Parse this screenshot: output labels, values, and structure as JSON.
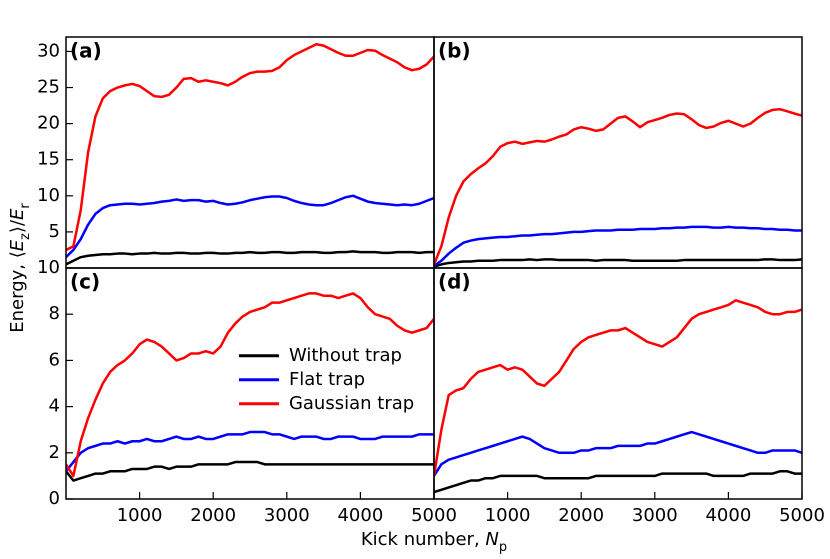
{
  "xlabel": [
    "Kick number, ",
    "N",
    "p"
  ],
  "ylabel": [
    "Energy, ⟨",
    "E",
    "z",
    "⟩/",
    "E",
    "r"
  ],
  "chart_data": [
    {
      "type": "line",
      "label": "(a)",
      "x": [
        0,
        100,
        200,
        300,
        400,
        500,
        600,
        700,
        800,
        900,
        1000,
        1100,
        1200,
        1300,
        1400,
        1500,
        1600,
        1700,
        1800,
        1900,
        2000,
        2100,
        2200,
        2300,
        2400,
        2500,
        2600,
        2700,
        2800,
        2900,
        3000,
        3100,
        3200,
        3300,
        3400,
        3500,
        3600,
        3700,
        3800,
        3900,
        4000,
        4100,
        4200,
        4300,
        4400,
        4500,
        4600,
        4700,
        4800,
        4900,
        5000
      ],
      "xlim": [
        0,
        5000
      ],
      "ylim": [
        0,
        32
      ],
      "yticks": [
        5,
        10,
        15,
        20,
        25,
        30
      ],
      "series": [
        {
          "name": "Without trap",
          "color": "#000000",
          "values": [
            0.5,
            1,
            1.5,
            1.7,
            1.8,
            1.9,
            1.9,
            2,
            2,
            1.9,
            2,
            2,
            2.1,
            2,
            2,
            2.1,
            2.1,
            2,
            2,
            2.1,
            2.1,
            2,
            2,
            2.1,
            2.1,
            2.2,
            2.1,
            2.1,
            2.2,
            2.2,
            2.1,
            2.1,
            2.2,
            2.2,
            2.2,
            2.1,
            2.1,
            2.2,
            2.2,
            2.3,
            2.2,
            2.2,
            2.2,
            2.1,
            2.1,
            2.2,
            2.2,
            2.2,
            2.1,
            2.2,
            2.2
          ]
        },
        {
          "name": "Flat trap",
          "color": "#0000ff",
          "values": [
            1.5,
            2.5,
            4,
            6,
            7.5,
            8.3,
            8.7,
            8.8,
            8.9,
            8.9,
            8.8,
            8.9,
            9,
            9.2,
            9.3,
            9.5,
            9.3,
            9.4,
            9.4,
            9.2,
            9.3,
            9,
            8.8,
            8.9,
            9.1,
            9.4,
            9.6,
            9.8,
            9.9,
            9.9,
            9.7,
            9.3,
            9,
            8.8,
            8.7,
            8.7,
            9,
            9.4,
            9.8,
            10,
            9.6,
            9.2,
            9,
            8.9,
            8.8,
            8.7,
            8.8,
            8.7,
            8.9,
            9.3,
            9.7
          ]
        },
        {
          "name": "Gaussian trap",
          "color": "#ff0000",
          "values": [
            2.5,
            3,
            8,
            16,
            21,
            23.5,
            24.5,
            25,
            25.3,
            25.5,
            25.2,
            24.5,
            23.8,
            23.7,
            24,
            25,
            26.2,
            26.3,
            25.8,
            26,
            25.8,
            25.6,
            25.3,
            25.8,
            26.5,
            27,
            27.2,
            27.2,
            27.3,
            27.8,
            28.8,
            29.5,
            30,
            30.5,
            31,
            30.8,
            30.3,
            29.8,
            29.4,
            29.4,
            29.8,
            30.2,
            30.1,
            29.5,
            29,
            28.5,
            27.8,
            27.4,
            27.6,
            28.2,
            29.3
          ]
        }
      ]
    },
    {
      "type": "line",
      "label": "(b)",
      "x": [
        0,
        100,
        200,
        300,
        400,
        500,
        600,
        700,
        800,
        900,
        1000,
        1100,
        1200,
        1300,
        1400,
        1500,
        1600,
        1700,
        1800,
        1900,
        2000,
        2100,
        2200,
        2300,
        2400,
        2500,
        2600,
        2700,
        2800,
        2900,
        3000,
        3100,
        3200,
        3300,
        3400,
        3500,
        3600,
        3700,
        3800,
        3900,
        4000,
        4100,
        4200,
        4300,
        4400,
        4500,
        4600,
        4700,
        4800,
        4900,
        5000
      ],
      "xlim": [
        0,
        5000
      ],
      "ylim": [
        0,
        32
      ],
      "series": [
        {
          "name": "Without trap",
          "color": "#000000",
          "values": [
            0.2,
            0.5,
            0.7,
            0.8,
            0.9,
            0.9,
            1,
            1,
            1,
            1.1,
            1.1,
            1.1,
            1.1,
            1.2,
            1.1,
            1.2,
            1.2,
            1.1,
            1.1,
            1.1,
            1.1,
            1.1,
            1,
            1.1,
            1.1,
            1.1,
            1.1,
            1,
            1,
            1,
            1,
            1,
            1,
            1,
            1.1,
            1.1,
            1.1,
            1.1,
            1.1,
            1.1,
            1.1,
            1.1,
            1.1,
            1.1,
            1.1,
            1.2,
            1.2,
            1.1,
            1.1,
            1.1,
            1.2
          ]
        },
        {
          "name": "Flat trap",
          "color": "#0000ff",
          "values": [
            0.3,
            1,
            2,
            2.8,
            3.5,
            3.8,
            4,
            4.1,
            4.2,
            4.3,
            4.3,
            4.4,
            4.5,
            4.5,
            4.6,
            4.7,
            4.7,
            4.8,
            4.9,
            5,
            5,
            5.1,
            5.2,
            5.2,
            5.2,
            5.3,
            5.3,
            5.3,
            5.4,
            5.4,
            5.4,
            5.5,
            5.5,
            5.6,
            5.6,
            5.7,
            5.7,
            5.7,
            5.6,
            5.6,
            5.7,
            5.6,
            5.6,
            5.5,
            5.5,
            5.4,
            5.4,
            5.3,
            5.3,
            5.2,
            5.2
          ]
        },
        {
          "name": "Gaussian trap",
          "color": "#ff0000",
          "values": [
            0.5,
            3,
            7,
            10,
            12,
            13,
            13.8,
            14.5,
            15.5,
            16.8,
            17.3,
            17.5,
            17.2,
            17.4,
            17.6,
            17.5,
            17.8,
            18.2,
            18.5,
            19.2,
            19.5,
            19.3,
            19,
            19.2,
            20,
            20.8,
            21,
            20.3,
            19.5,
            20.2,
            20.5,
            20.8,
            21.2,
            21.4,
            21.3,
            20.6,
            19.8,
            19.4,
            19.6,
            20.1,
            20.4,
            20,
            19.6,
            20,
            20.8,
            21.5,
            21.9,
            22,
            21.7,
            21.4,
            21.1
          ]
        }
      ]
    },
    {
      "type": "line",
      "label": "(c)",
      "legend": "center",
      "x": [
        0,
        100,
        200,
        300,
        400,
        500,
        600,
        700,
        800,
        900,
        1000,
        1100,
        1200,
        1300,
        1400,
        1500,
        1600,
        1700,
        1800,
        1900,
        2000,
        2100,
        2200,
        2300,
        2400,
        2500,
        2600,
        2700,
        2800,
        2900,
        3000,
        3100,
        3200,
        3300,
        3400,
        3500,
        3600,
        3700,
        3800,
        3900,
        4000,
        4100,
        4200,
        4300,
        4400,
        4500,
        4600,
        4700,
        4800,
        4900,
        5000
      ],
      "xlim": [
        0,
        5000
      ],
      "ylim": [
        0,
        10
      ],
      "xticks": [
        1000,
        2000,
        3000,
        4000,
        5000
      ],
      "yticks": [
        0,
        2,
        4,
        6,
        8,
        10
      ],
      "series": [
        {
          "name": "Without trap",
          "color": "#000000",
          "values": [
            1.2,
            0.8,
            0.9,
            1,
            1.1,
            1.1,
            1.2,
            1.2,
            1.2,
            1.3,
            1.3,
            1.3,
            1.4,
            1.4,
            1.3,
            1.4,
            1.4,
            1.4,
            1.5,
            1.5,
            1.5,
            1.5,
            1.5,
            1.6,
            1.6,
            1.6,
            1.6,
            1.5,
            1.5,
            1.5,
            1.5,
            1.5,
            1.5,
            1.5,
            1.5,
            1.5,
            1.5,
            1.5,
            1.5,
            1.5,
            1.5,
            1.5,
            1.5,
            1.5,
            1.5,
            1.5,
            1.5,
            1.5,
            1.5,
            1.5,
            1.5
          ]
        },
        {
          "name": "Flat trap",
          "color": "#0000ff",
          "values": [
            1.2,
            1.6,
            2,
            2.2,
            2.3,
            2.4,
            2.4,
            2.5,
            2.4,
            2.5,
            2.5,
            2.6,
            2.5,
            2.5,
            2.6,
            2.7,
            2.6,
            2.6,
            2.7,
            2.6,
            2.6,
            2.7,
            2.8,
            2.8,
            2.8,
            2.9,
            2.9,
            2.9,
            2.8,
            2.8,
            2.7,
            2.6,
            2.7,
            2.7,
            2.7,
            2.6,
            2.6,
            2.7,
            2.7,
            2.7,
            2.6,
            2.6,
            2.6,
            2.7,
            2.7,
            2.7,
            2.7,
            2.7,
            2.8,
            2.8,
            2.8
          ]
        },
        {
          "name": "Gaussian trap",
          "color": "#ff0000",
          "values": [
            1.5,
            1,
            2.5,
            3.5,
            4.3,
            5,
            5.5,
            5.8,
            6,
            6.3,
            6.7,
            6.9,
            6.8,
            6.6,
            6.3,
            6,
            6.1,
            6.3,
            6.3,
            6.4,
            6.3,
            6.6,
            7.2,
            7.6,
            7.9,
            8.1,
            8.2,
            8.3,
            8.5,
            8.5,
            8.6,
            8.7,
            8.8,
            8.9,
            8.9,
            8.8,
            8.8,
            8.7,
            8.8,
            8.9,
            8.7,
            8.3,
            8,
            7.9,
            7.8,
            7.5,
            7.3,
            7.2,
            7.3,
            7.4,
            7.8
          ]
        }
      ]
    },
    {
      "type": "line",
      "label": "(d)",
      "x": [
        0,
        100,
        200,
        300,
        400,
        500,
        600,
        700,
        800,
        900,
        1000,
        1100,
        1200,
        1300,
        1400,
        1500,
        1600,
        1700,
        1800,
        1900,
        2000,
        2100,
        2200,
        2300,
        2400,
        2500,
        2600,
        2700,
        2800,
        2900,
        3000,
        3100,
        3200,
        3300,
        3400,
        3500,
        3600,
        3700,
        3800,
        3900,
        4000,
        4100,
        4200,
        4300,
        4400,
        4500,
        4600,
        4700,
        4800,
        4900,
        5000
      ],
      "xlim": [
        0,
        5000
      ],
      "ylim": [
        0,
        10
      ],
      "xticks": [
        1000,
        2000,
        3000,
        4000,
        5000
      ],
      "series": [
        {
          "name": "Without trap",
          "color": "#000000",
          "values": [
            0.3,
            0.4,
            0.5,
            0.6,
            0.7,
            0.8,
            0.8,
            0.9,
            0.9,
            1,
            1,
            1,
            1,
            1,
            1,
            0.9,
            0.9,
            0.9,
            0.9,
            0.9,
            0.9,
            0.9,
            1,
            1,
            1,
            1,
            1,
            1,
            1,
            1,
            1,
            1.1,
            1.1,
            1.1,
            1.1,
            1.1,
            1.1,
            1.1,
            1,
            1,
            1,
            1,
            1,
            1.1,
            1.1,
            1.1,
            1.1,
            1.2,
            1.2,
            1.1,
            1.1
          ]
        },
        {
          "name": "Flat trap",
          "color": "#0000ff",
          "values": [
            1,
            1.5,
            1.7,
            1.8,
            1.9,
            2,
            2.1,
            2.2,
            2.3,
            2.4,
            2.5,
            2.6,
            2.7,
            2.6,
            2.4,
            2.2,
            2.1,
            2,
            2,
            2,
            2.1,
            2.1,
            2.2,
            2.2,
            2.2,
            2.3,
            2.3,
            2.3,
            2.3,
            2.4,
            2.4,
            2.5,
            2.6,
            2.7,
            2.8,
            2.9,
            2.8,
            2.7,
            2.6,
            2.5,
            2.4,
            2.3,
            2.2,
            2.1,
            2,
            2,
            2.1,
            2.1,
            2.1,
            2.1,
            2
          ]
        },
        {
          "name": "Gaussian trap",
          "color": "#ff0000",
          "values": [
            1,
            3,
            4.5,
            4.7,
            4.8,
            5.2,
            5.5,
            5.6,
            5.7,
            5.8,
            5.6,
            5.7,
            5.6,
            5.3,
            5,
            4.9,
            5.2,
            5.5,
            6,
            6.5,
            6.8,
            7,
            7.1,
            7.2,
            7.3,
            7.3,
            7.4,
            7.2,
            7,
            6.8,
            6.7,
            6.6,
            6.8,
            7,
            7.4,
            7.8,
            8,
            8.1,
            8.2,
            8.3,
            8.4,
            8.6,
            8.5,
            8.4,
            8.3,
            8.1,
            8,
            8,
            8.1,
            8.1,
            8.2
          ]
        }
      ]
    }
  ]
}
